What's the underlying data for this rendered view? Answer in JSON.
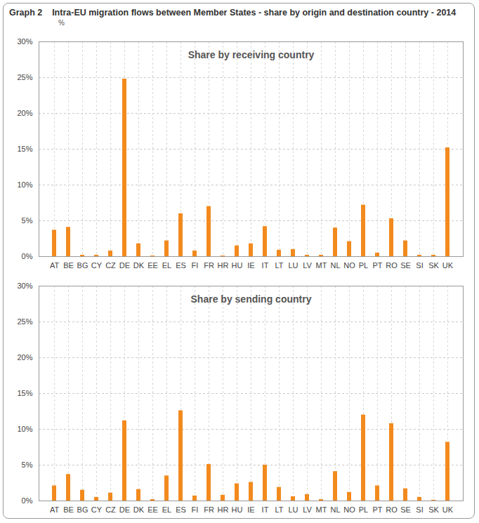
{
  "title": "Graph 2    Intra-EU migration flows between Member States - share by origin and destination country - 2014",
  "subtitle": "%",
  "chart_data": [
    {
      "type": "bar",
      "title": "Share by receiving country",
      "categories": [
        "AT",
        "BE",
        "BG",
        "CY",
        "CZ",
        "DE",
        "DK",
        "EE",
        "EL",
        "ES",
        "FI",
        "FR",
        "HR",
        "HU",
        "IE",
        "IT",
        "LT",
        "LU",
        "LV",
        "MT",
        "NL",
        "NO",
        "PL",
        "PT",
        "RO",
        "SE",
        "SI",
        "SK",
        "UK"
      ],
      "values": [
        3.7,
        4.1,
        0.2,
        0.2,
        0.8,
        24.8,
        1.8,
        0.1,
        2.2,
        6.0,
        0.8,
        7.0,
        0.1,
        1.5,
        1.8,
        4.2,
        0.9,
        1.0,
        0.2,
        0.2,
        4.0,
        2.1,
        7.2,
        0.5,
        5.3,
        2.2,
        0.2,
        0.2,
        15.2
      ],
      "color": "#f28a1e",
      "ylim": [
        0,
        30
      ],
      "yticks": [
        {
          "value": 0,
          "label": "0%"
        },
        {
          "value": 5,
          "label": "5%"
        },
        {
          "value": 10,
          "label": "10%"
        },
        {
          "value": 15,
          "label": "15%"
        },
        {
          "value": 20,
          "label": "20%"
        },
        {
          "value": 25,
          "label": "25%"
        },
        {
          "value": 30,
          "label": "30%"
        }
      ],
      "grid": true
    },
    {
      "type": "bar",
      "title": "Share by sending country",
      "categories": [
        "AT",
        "BE",
        "BG",
        "CY",
        "CZ",
        "DE",
        "DK",
        "EE",
        "EL",
        "ES",
        "FI",
        "FR",
        "HR",
        "HU",
        "IE",
        "IT",
        "LT",
        "LU",
        "LV",
        "MT",
        "NL",
        "NO",
        "PL",
        "PT",
        "RO",
        "SE",
        "SI",
        "SK",
        "UK"
      ],
      "values": [
        2.1,
        3.7,
        1.5,
        0.5,
        1.1,
        11.2,
        1.6,
        0.2,
        3.5,
        12.6,
        0.7,
        5.1,
        0.8,
        2.4,
        2.6,
        5.0,
        1.9,
        0.6,
        0.9,
        0.2,
        4.1,
        1.2,
        12.0,
        2.1,
        10.8,
        1.7,
        0.5,
        0.1,
        8.2
      ],
      "color": "#f28a1e",
      "ylim": [
        0,
        30
      ],
      "yticks": [
        {
          "value": 0,
          "label": "0%"
        },
        {
          "value": 5,
          "label": "5%"
        },
        {
          "value": 10,
          "label": "10%"
        },
        {
          "value": 15,
          "label": "15%"
        },
        {
          "value": 20,
          "label": "20%"
        },
        {
          "value": 25,
          "label": "25%"
        },
        {
          "value": 30,
          "label": "30%"
        }
      ],
      "grid": true
    }
  ]
}
